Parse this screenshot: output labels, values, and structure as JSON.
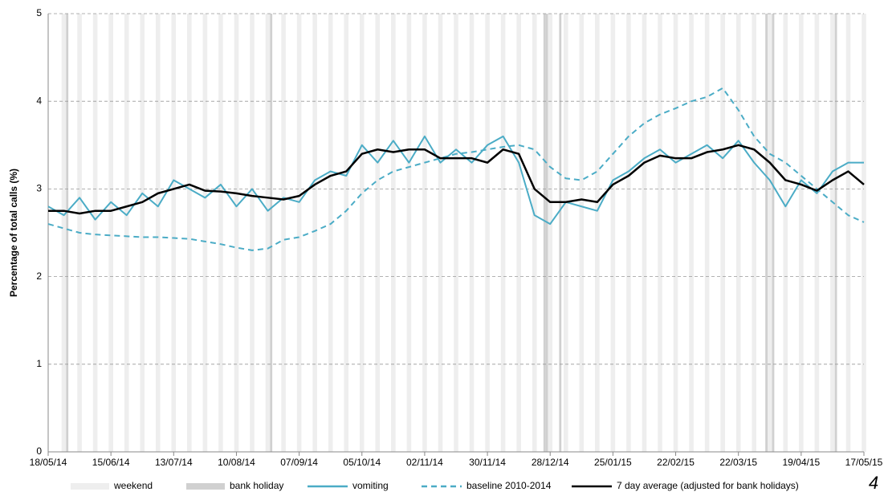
{
  "chart_data": {
    "type": "line",
    "y_label": "Percentage of total calls (%)",
    "x": [
      "18/05/14",
      "25/05/14",
      "01/06/14",
      "08/06/14",
      "15/06/14",
      "22/06/14",
      "29/06/14",
      "06/07/14",
      "13/07/14",
      "20/07/14",
      "27/07/14",
      "03/08/14",
      "10/08/14",
      "17/08/14",
      "24/08/14",
      "31/08/14",
      "07/09/14",
      "14/09/14",
      "21/09/14",
      "28/09/14",
      "05/10/14",
      "12/10/14",
      "19/10/14",
      "26/10/14",
      "02/11/14",
      "09/11/14",
      "16/11/14",
      "23/11/14",
      "30/11/14",
      "07/12/14",
      "14/12/14",
      "21/12/14",
      "28/12/14",
      "04/01/15",
      "11/01/15",
      "18/01/15",
      "25/01/15",
      "01/02/15",
      "08/02/15",
      "15/02/15",
      "22/02/15",
      "01/03/15",
      "08/03/15",
      "15/03/15",
      "22/03/15",
      "29/03/15",
      "05/04/15",
      "12/04/15",
      "19/04/15",
      "26/04/15",
      "03/05/15",
      "10/05/15",
      "17/05/15"
    ],
    "series": [
      {
        "name": "vomiting",
        "color": "#4bacc6",
        "dash": false,
        "values": [
          2.8,
          2.7,
          2.9,
          2.65,
          2.85,
          2.7,
          2.95,
          2.8,
          3.1,
          3.0,
          2.9,
          3.05,
          2.8,
          3.0,
          2.75,
          2.9,
          2.85,
          3.1,
          3.2,
          3.15,
          3.5,
          3.3,
          3.55,
          3.3,
          3.6,
          3.3,
          3.45,
          3.3,
          3.5,
          3.6,
          3.3,
          2.7,
          2.6,
          2.85,
          2.8,
          2.75,
          3.1,
          3.2,
          3.35,
          3.45,
          3.3,
          3.4,
          3.5,
          3.35,
          3.55,
          3.3,
          3.1,
          2.8,
          3.1,
          2.95,
          3.2,
          3.3,
          3.3
        ]
      },
      {
        "name": "baseline 2010-2014",
        "color": "#4bacc6",
        "dash": true,
        "values": [
          2.6,
          2.55,
          2.5,
          2.48,
          2.47,
          2.46,
          2.45,
          2.45,
          2.44,
          2.43,
          2.4,
          2.37,
          2.33,
          2.3,
          2.32,
          2.42,
          2.45,
          2.52,
          2.6,
          2.75,
          2.95,
          3.1,
          3.2,
          3.25,
          3.3,
          3.35,
          3.4,
          3.42,
          3.45,
          3.48,
          3.5,
          3.45,
          3.25,
          3.12,
          3.1,
          3.2,
          3.4,
          3.6,
          3.75,
          3.85,
          3.92,
          4.0,
          4.05,
          4.15,
          3.9,
          3.6,
          3.4,
          3.3,
          3.15,
          3.0,
          2.85,
          2.7,
          2.62
        ]
      },
      {
        "name": "7 day average (adjusted for bank holidays)",
        "color": "#000000",
        "dash": false,
        "values": [
          2.75,
          2.75,
          2.72,
          2.75,
          2.75,
          2.8,
          2.85,
          2.95,
          3.0,
          3.05,
          2.98,
          2.97,
          2.95,
          2.92,
          2.9,
          2.88,
          2.92,
          3.05,
          3.15,
          3.2,
          3.4,
          3.45,
          3.42,
          3.45,
          3.45,
          3.35,
          3.35,
          3.35,
          3.3,
          3.45,
          3.4,
          3.0,
          2.85,
          2.85,
          2.88,
          2.85,
          3.05,
          3.15,
          3.3,
          3.38,
          3.35,
          3.35,
          3.42,
          3.45,
          3.5,
          3.45,
          3.3,
          3.1,
          3.05,
          2.98,
          3.1,
          3.2,
          3.05
        ]
      }
    ],
    "weekend_label": "weekend",
    "bank_holiday_label": "bank holiday",
    "bank_holidays": [
      "26/05/14",
      "25/08/14",
      "25/12/14",
      "26/12/14",
      "01/01/15",
      "03/04/15",
      "06/04/15",
      "04/05/15"
    ],
    "xlim": [
      "18/05/14",
      "17/05/15"
    ],
    "xticks": [
      "18/05/14",
      "15/06/14",
      "13/07/14",
      "10/08/14",
      "07/09/14",
      "05/10/14",
      "02/11/14",
      "30/11/14",
      "28/12/14",
      "25/01/15",
      "22/02/15",
      "22/03/15",
      "19/04/15",
      "17/05/15"
    ],
    "ylim": [
      0,
      5
    ],
    "yticks": [
      0,
      1,
      2,
      3,
      4,
      5
    ],
    "grid": true,
    "page_number": "4"
  }
}
